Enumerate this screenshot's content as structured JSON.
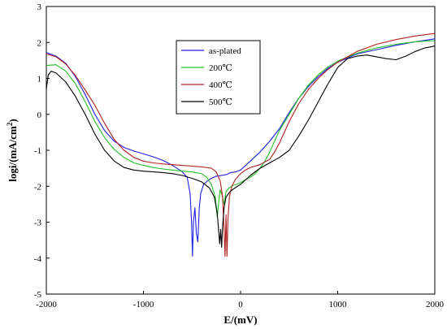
{
  "chart_data": {
    "type": "line",
    "xlabel": "E/(mV)",
    "ylabel_main": "logi/(mA/cm",
    "ylabel_sup": "2",
    "ylabel_close": ")",
    "xlim": [
      -2000,
      2000
    ],
    "ylim": [
      -5,
      3
    ],
    "x_ticks": [
      -2000,
      -1000,
      0,
      1000,
      2000
    ],
    "y_ticks": [
      -5,
      -4,
      -3,
      -2,
      -1,
      0,
      1,
      2,
      3
    ],
    "grid": false,
    "legend_position": "upper-middle",
    "series": [
      {
        "name": "as-plated",
        "color": "#1f1fe8",
        "points": [
          [
            -2000,
            1.72
          ],
          [
            -1900,
            1.62
          ],
          [
            -1800,
            1.42
          ],
          [
            -1700,
            1.05
          ],
          [
            -1600,
            0.55
          ],
          [
            -1500,
            0.0
          ],
          [
            -1400,
            -0.45
          ],
          [
            -1300,
            -0.75
          ],
          [
            -1200,
            -0.92
          ],
          [
            -1100,
            -1.02
          ],
          [
            -1000,
            -1.1
          ],
          [
            -900,
            -1.18
          ],
          [
            -800,
            -1.28
          ],
          [
            -700,
            -1.42
          ],
          [
            -600,
            -1.6
          ],
          [
            -550,
            -1.75
          ],
          [
            -520,
            -2.2
          ],
          [
            -505,
            -3.0
          ],
          [
            -495,
            -3.95
          ],
          [
            -485,
            -3.0
          ],
          [
            -470,
            -2.6
          ],
          [
            -455,
            -3.3
          ],
          [
            -440,
            -3.55
          ],
          [
            -425,
            -2.6
          ],
          [
            -410,
            -2.2
          ],
          [
            -380,
            -1.95
          ],
          [
            -340,
            -1.85
          ],
          [
            -300,
            -1.78
          ],
          [
            -250,
            -1.72
          ],
          [
            -200,
            -1.7
          ],
          [
            -150,
            -1.68
          ],
          [
            -100,
            -1.62
          ],
          [
            -50,
            -1.6
          ],
          [
            0,
            -1.55
          ],
          [
            100,
            -1.3
          ],
          [
            200,
            -1.05
          ],
          [
            300,
            -0.75
          ],
          [
            400,
            -0.4
          ],
          [
            500,
            0.05
          ],
          [
            600,
            0.45
          ],
          [
            700,
            0.78
          ],
          [
            800,
            1.05
          ],
          [
            900,
            1.28
          ],
          [
            1000,
            1.45
          ],
          [
            1200,
            1.68
          ],
          [
            1400,
            1.8
          ],
          [
            1600,
            1.92
          ],
          [
            1800,
            2.02
          ],
          [
            2000,
            2.1
          ]
        ]
      },
      {
        "name": "200℃",
        "color": "#22c022",
        "points": [
          [
            -2000,
            1.36
          ],
          [
            -1900,
            1.38
          ],
          [
            -1800,
            1.2
          ],
          [
            -1700,
            0.85
          ],
          [
            -1600,
            0.35
          ],
          [
            -1500,
            -0.2
          ],
          [
            -1400,
            -0.65
          ],
          [
            -1300,
            -0.98
          ],
          [
            -1200,
            -1.2
          ],
          [
            -1100,
            -1.35
          ],
          [
            -1000,
            -1.42
          ],
          [
            -900,
            -1.48
          ],
          [
            -800,
            -1.52
          ],
          [
            -700,
            -1.55
          ],
          [
            -600,
            -1.58
          ],
          [
            -500,
            -1.6
          ],
          [
            -400,
            -1.65
          ],
          [
            -350,
            -1.75
          ],
          [
            -300,
            -1.95
          ],
          [
            -260,
            -2.3
          ],
          [
            -240,
            -2.85
          ],
          [
            -225,
            -2.45
          ],
          [
            -210,
            -2.1
          ],
          [
            -190,
            -2.25
          ],
          [
            -170,
            -2.5
          ],
          [
            -150,
            -2.15
          ],
          [
            -120,
            -2.05
          ],
          [
            -80,
            -1.98
          ],
          [
            -40,
            -1.95
          ],
          [
            0,
            -1.9
          ],
          [
            50,
            -1.82
          ],
          [
            100,
            -1.75
          ],
          [
            150,
            -1.65
          ],
          [
            200,
            -1.5
          ],
          [
            250,
            -1.3
          ],
          [
            300,
            -1.05
          ],
          [
            350,
            -0.75
          ],
          [
            400,
            -0.45
          ],
          [
            500,
            0.0
          ],
          [
            600,
            0.45
          ],
          [
            700,
            0.82
          ],
          [
            800,
            1.1
          ],
          [
            900,
            1.32
          ],
          [
            1000,
            1.48
          ],
          [
            1200,
            1.7
          ],
          [
            1400,
            1.85
          ],
          [
            1600,
            1.95
          ],
          [
            1800,
            2.02
          ],
          [
            2000,
            2.05
          ]
        ]
      },
      {
        "name": "400℃",
        "color": "#b02020",
        "points": [
          [
            -2000,
            1.68
          ],
          [
            -1900,
            1.6
          ],
          [
            -1800,
            1.4
          ],
          [
            -1700,
            1.08
          ],
          [
            -1600,
            0.68
          ],
          [
            -1500,
            0.25
          ],
          [
            -1400,
            -0.25
          ],
          [
            -1300,
            -0.7
          ],
          [
            -1200,
            -1.0
          ],
          [
            -1100,
            -1.2
          ],
          [
            -1000,
            -1.3
          ],
          [
            -900,
            -1.35
          ],
          [
            -800,
            -1.38
          ],
          [
            -700,
            -1.4
          ],
          [
            -600,
            -1.42
          ],
          [
            -500,
            -1.44
          ],
          [
            -400,
            -1.46
          ],
          [
            -300,
            -1.5
          ],
          [
            -250,
            -1.6
          ],
          [
            -210,
            -1.85
          ],
          [
            -185,
            -2.3
          ],
          [
            -170,
            -3.2
          ],
          [
            -160,
            -3.95
          ],
          [
            -150,
            -2.8
          ],
          [
            -140,
            -3.95
          ],
          [
            -130,
            -2.9
          ],
          [
            -115,
            -2.3
          ],
          [
            -90,
            -2.0
          ],
          [
            -50,
            -1.8
          ],
          [
            0,
            -1.65
          ],
          [
            50,
            -1.55
          ],
          [
            100,
            -1.48
          ],
          [
            200,
            -1.4
          ],
          [
            300,
            -1.25
          ],
          [
            350,
            -1.05
          ],
          [
            400,
            -0.8
          ],
          [
            450,
            -0.5
          ],
          [
            500,
            -0.2
          ],
          [
            600,
            0.3
          ],
          [
            700,
            0.7
          ],
          [
            800,
            1.0
          ],
          [
            900,
            1.25
          ],
          [
            1000,
            1.45
          ],
          [
            1200,
            1.75
          ],
          [
            1400,
            1.95
          ],
          [
            1600,
            2.08
          ],
          [
            1800,
            2.18
          ],
          [
            2000,
            2.25
          ]
        ]
      },
      {
        "name": "500℃",
        "color": "#000000",
        "points": [
          [
            -2000,
            0.7
          ],
          [
            -1980,
            1.1
          ],
          [
            -1950,
            1.2
          ],
          [
            -1900,
            1.15
          ],
          [
            -1800,
            0.9
          ],
          [
            -1700,
            0.5
          ],
          [
            -1600,
            0.0
          ],
          [
            -1500,
            -0.55
          ],
          [
            -1400,
            -1.0
          ],
          [
            -1300,
            -1.3
          ],
          [
            -1200,
            -1.48
          ],
          [
            -1100,
            -1.55
          ],
          [
            -1000,
            -1.58
          ],
          [
            -900,
            -1.6
          ],
          [
            -800,
            -1.62
          ],
          [
            -700,
            -1.65
          ],
          [
            -600,
            -1.7
          ],
          [
            -500,
            -1.78
          ],
          [
            -400,
            -1.88
          ],
          [
            -320,
            -2.05
          ],
          [
            -270,
            -2.3
          ],
          [
            -240,
            -2.75
          ],
          [
            -215,
            -3.6
          ],
          [
            -205,
            -3.2
          ],
          [
            -195,
            -3.7
          ],
          [
            -185,
            -3.1
          ],
          [
            -170,
            -2.6
          ],
          [
            -150,
            -2.3
          ],
          [
            -110,
            -2.15
          ],
          [
            -60,
            -2.05
          ],
          [
            0,
            -1.95
          ],
          [
            100,
            -1.7
          ],
          [
            200,
            -1.5
          ],
          [
            300,
            -1.35
          ],
          [
            400,
            -1.2
          ],
          [
            500,
            -1.0
          ],
          [
            600,
            -0.6
          ],
          [
            700,
            -0.15
          ],
          [
            800,
            0.35
          ],
          [
            900,
            0.85
          ],
          [
            1000,
            1.3
          ],
          [
            1100,
            1.55
          ],
          [
            1200,
            1.62
          ],
          [
            1300,
            1.65
          ],
          [
            1400,
            1.6
          ],
          [
            1500,
            1.55
          ],
          [
            1600,
            1.52
          ],
          [
            1700,
            1.62
          ],
          [
            1800,
            1.75
          ],
          [
            1900,
            1.85
          ],
          [
            2000,
            1.9
          ]
        ]
      }
    ]
  }
}
